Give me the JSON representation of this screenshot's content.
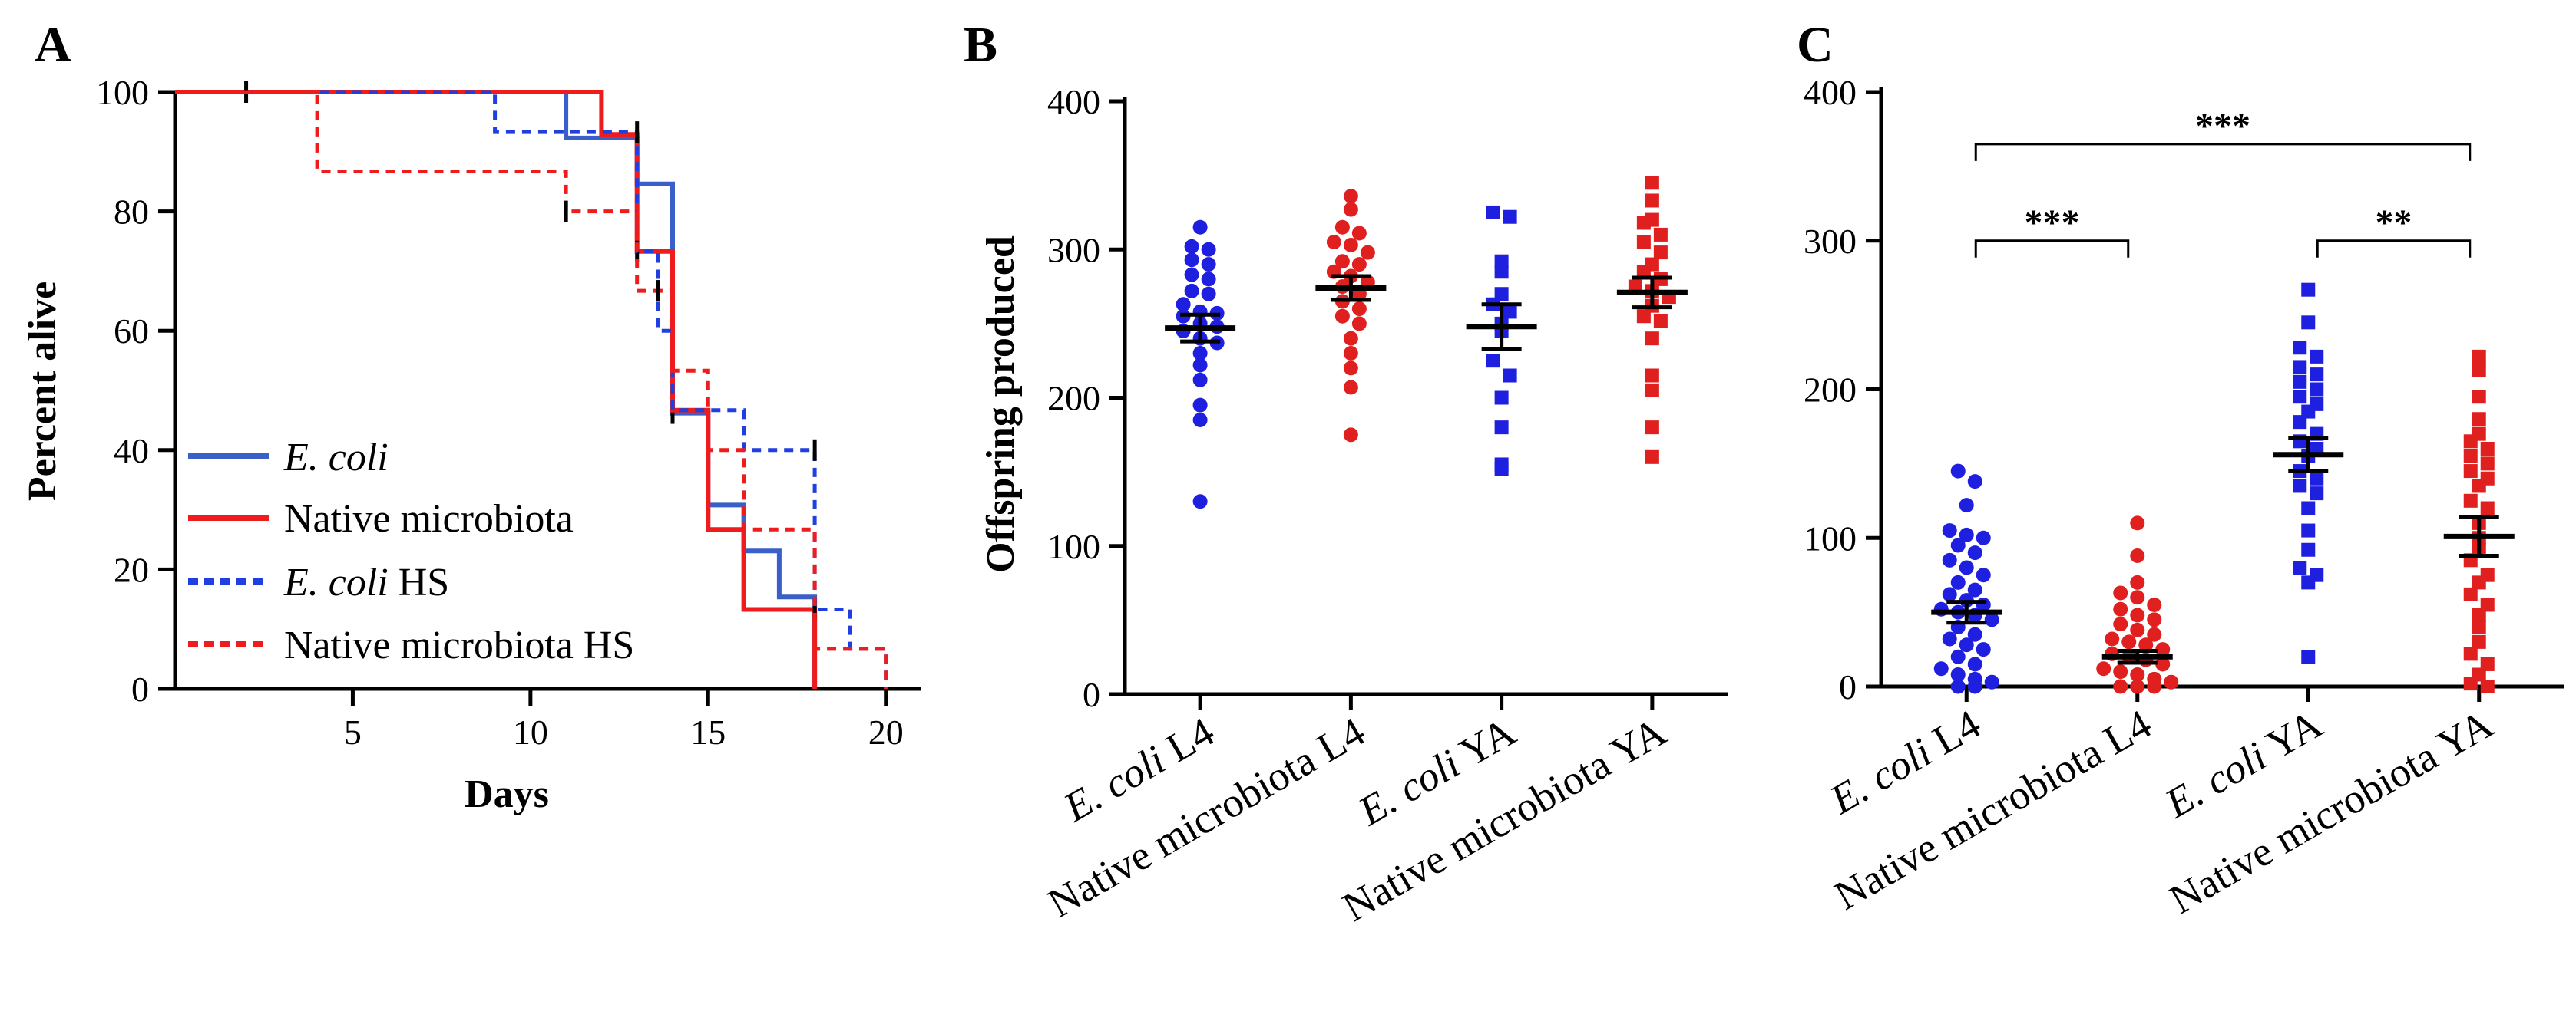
{
  "figure": {
    "panels": [
      "A",
      "B",
      "C"
    ]
  },
  "colors": {
    "blue": "#1f1fe0",
    "red": "#e01f1f",
    "blue_line": "#3a5fc8",
    "red_line": "#ee1c1c",
    "black": "#000000"
  },
  "chart_data": [
    {
      "panel": "A",
      "type": "line",
      "subtype": "survival step curve",
      "xlabel": "Days",
      "ylabel": "Percent alive",
      "xlim": [
        0,
        21
      ],
      "ylim": [
        0,
        100
      ],
      "xticks": [
        5,
        10,
        15,
        20
      ],
      "yticks": [
        0,
        20,
        40,
        60,
        80,
        100
      ],
      "legend_position": "bottom-left",
      "series": [
        {
          "name": "E. coli",
          "name_italic": "E. coli",
          "name_rest": "",
          "style": "solid",
          "color": "#3a5fc8",
          "steps": [
            [
              0,
              100
            ],
            [
              11,
              100
            ],
            [
              11,
              92.3
            ],
            [
              13,
              92.3
            ],
            [
              13,
              84.6
            ],
            [
              14,
              84.6
            ],
            [
              14,
              46.2
            ],
            [
              15,
              46.2
            ],
            [
              15,
              30.8
            ],
            [
              16,
              30.8
            ],
            [
              16,
              23.1
            ],
            [
              17,
              23.1
            ],
            [
              17,
              15.4
            ],
            [
              18,
              15.4
            ],
            [
              18,
              0
            ]
          ],
          "censor_marks": [
            [
              14,
              46.2
            ]
          ]
        },
        {
          "name": "Native microbiota",
          "name_italic": "",
          "name_rest": "Native microbiota",
          "style": "solid",
          "color": "#ee1c1c",
          "steps": [
            [
              0,
              100
            ],
            [
              12,
              100
            ],
            [
              12,
              92.9
            ],
            [
              13,
              92.9
            ],
            [
              13,
              73.3
            ],
            [
              14,
              73.3
            ],
            [
              14,
              46.7
            ],
            [
              15,
              46.7
            ],
            [
              15,
              26.7
            ],
            [
              16,
              26.7
            ],
            [
              16,
              13.3
            ],
            [
              18,
              13.3
            ],
            [
              18,
              0
            ]
          ],
          "censor_marks": [
            [
              2,
              100
            ],
            [
              13,
              73.3
            ],
            [
              18,
              13.3
            ]
          ]
        },
        {
          "name": "E. coli HS",
          "name_italic": "E. coli",
          "name_rest": " HS",
          "style": "dotted",
          "color": "#1f3fe0",
          "steps": [
            [
              0,
              100
            ],
            [
              9,
              100
            ],
            [
              9,
              93.3
            ],
            [
              13,
              93.3
            ],
            [
              13,
              73.3
            ],
            [
              13.6,
              73.3
            ],
            [
              13.6,
              60
            ],
            [
              14,
              60
            ],
            [
              14,
              46.7
            ],
            [
              16,
              46.7
            ],
            [
              16,
              40
            ],
            [
              18,
              40
            ],
            [
              18,
              13.3
            ],
            [
              19,
              13.3
            ],
            [
              19,
              6.7
            ],
            [
              20,
              6.7
            ],
            [
              20,
              0
            ]
          ],
          "censor_marks": [
            [
              13,
              93.3
            ],
            [
              18,
              40
            ]
          ]
        },
        {
          "name": "Native microbiota HS",
          "name_italic": "",
          "name_rest": "Native microbiota HS",
          "style": "dotted",
          "color": "#ee1c1c",
          "steps": [
            [
              0,
              100
            ],
            [
              4,
              100
            ],
            [
              4,
              86.7
            ],
            [
              11,
              86.7
            ],
            [
              11,
              80
            ],
            [
              13,
              80
            ],
            [
              13,
              66.7
            ],
            [
              14,
              66.7
            ],
            [
              14,
              53.3
            ],
            [
              15,
              53.3
            ],
            [
              15,
              40
            ],
            [
              16,
              40
            ],
            [
              16,
              26.7
            ],
            [
              18,
              26.7
            ],
            [
              18,
              6.7
            ],
            [
              20,
              6.7
            ],
            [
              20,
              0
            ]
          ],
          "censor_marks": [
            [
              11,
              80
            ],
            [
              13.6,
              66.7
            ]
          ]
        }
      ]
    },
    {
      "panel": "B",
      "type": "scatter",
      "subtype": "dot plot with mean and SEM",
      "ylabel": "Offspring produced",
      "ylim": [
        0,
        400
      ],
      "yticks": [
        0,
        100,
        200,
        300,
        400
      ],
      "categories": [
        {
          "italic": "E. coli",
          "rest": " L4"
        },
        {
          "italic": "",
          "rest": "Native microbiota L4"
        },
        {
          "italic": "E. coli",
          "rest": " YA"
        },
        {
          "italic": "",
          "rest": "Native microbiota YA"
        }
      ],
      "groups": [
        {
          "marker": "circle",
          "color": "#1f1fe0",
          "mean": 247,
          "sem": 9,
          "values": [
            315,
            302,
            300,
            293,
            290,
            283,
            280,
            272,
            270,
            263,
            258,
            257,
            255,
            250,
            248,
            245,
            240,
            237,
            230,
            222,
            212,
            195,
            185,
            130
          ]
        },
        {
          "marker": "circle",
          "color": "#e01f1f",
          "mean": 274,
          "sem": 8,
          "values": [
            336,
            327,
            315,
            311,
            305,
            303,
            298,
            292,
            290,
            285,
            282,
            278,
            275,
            270,
            265,
            260,
            255,
            250,
            240,
            230,
            220,
            207,
            175
          ]
        },
        {
          "marker": "square",
          "color": "#1f1fe0",
          "mean": 248,
          "sem": 15,
          "values": [
            325,
            322,
            292,
            285,
            270,
            263,
            258,
            250,
            245,
            225,
            215,
            200,
            180,
            155,
            152
          ]
        },
        {
          "marker": "square",
          "color": "#e01f1f",
          "mean": 271,
          "sem": 10,
          "values": [
            345,
            333,
            320,
            318,
            310,
            305,
            298,
            290,
            285,
            280,
            275,
            272,
            268,
            262,
            255,
            252,
            240,
            215,
            205,
            180,
            160
          ]
        }
      ]
    },
    {
      "panel": "C",
      "type": "scatter",
      "subtype": "dot plot with mean and SEM",
      "ylabel": "",
      "ylim": [
        0,
        400
      ],
      "yticks": [
        0,
        100,
        200,
        300,
        400
      ],
      "categories": [
        {
          "italic": "E. coli",
          "rest": " L4"
        },
        {
          "italic": "",
          "rest": "Native microbiota L4"
        },
        {
          "italic": "E. coli",
          "rest": " YA"
        },
        {
          "italic": "",
          "rest": "Native microbiota YA"
        }
      ],
      "significance": [
        {
          "from": 0,
          "to": 1,
          "label": "***",
          "level": 300
        },
        {
          "from": 2,
          "to": 3,
          "label": "**",
          "level": 300
        },
        {
          "from": 0,
          "to": 3,
          "label": "***",
          "level": 365
        }
      ],
      "groups": [
        {
          "marker": "circle",
          "color": "#1f1fe0",
          "mean": 50,
          "sem": 7,
          "values": [
            145,
            138,
            122,
            105,
            102,
            100,
            95,
            90,
            85,
            80,
            75,
            70,
            65,
            62,
            58,
            55,
            52,
            50,
            48,
            45,
            40,
            35,
            32,
            28,
            25,
            20,
            15,
            12,
            8,
            5,
            3,
            0,
            0
          ]
        },
        {
          "marker": "circle",
          "color": "#e01f1f",
          "mean": 20,
          "sem": 4,
          "values": [
            110,
            88,
            70,
            63,
            60,
            55,
            52,
            48,
            45,
            42,
            38,
            35,
            32,
            30,
            28,
            25,
            22,
            20,
            18,
            15,
            12,
            10,
            8,
            5,
            3,
            0,
            0,
            0
          ]
        },
        {
          "marker": "square",
          "color": "#1f1fe0",
          "mean": 156,
          "sem": 11,
          "values": [
            267,
            245,
            228,
            222,
            215,
            210,
            205,
            200,
            195,
            190,
            185,
            178,
            170,
            165,
            160,
            155,
            145,
            140,
            135,
            130,
            120,
            105,
            92,
            80,
            75,
            70,
            20
          ]
        },
        {
          "marker": "square",
          "color": "#e01f1f",
          "mean": 101,
          "sem": 13,
          "values": [
            222,
            213,
            195,
            180,
            170,
            165,
            160,
            155,
            150,
            145,
            140,
            135,
            125,
            120,
            110,
            100,
            92,
            85,
            75,
            70,
            62,
            55,
            48,
            40,
            30,
            22,
            15,
            8,
            2,
            0
          ]
        }
      ]
    }
  ]
}
